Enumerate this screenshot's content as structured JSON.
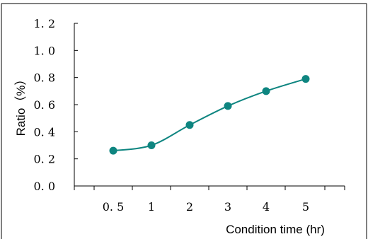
{
  "chart_data": {
    "type": "line",
    "categories": [
      "0. 5",
      "1",
      "2",
      "3",
      "4",
      "5"
    ],
    "series": [
      {
        "values": [
          0.26,
          0.3,
          0.45,
          0.59,
          0.7,
          0.79
        ]
      }
    ],
    "y_ticks": [
      "0. 0",
      "0. 2",
      "0. 4",
      "0. 6",
      "0. 8",
      "1. 0",
      "1. 2"
    ],
    "y_tick_values": [
      0,
      0.2,
      0.4,
      0.6,
      0.8,
      1.0,
      1.2
    ],
    "ylim": [
      0,
      1.2
    ],
    "xlabel": "Condition time (hr)",
    "ylabel": "Ratio（%）",
    "title": "",
    "grid": false,
    "legend": "none",
    "colors": {
      "series": "#0e8580",
      "axis": "#000000",
      "frame": "#000000"
    },
    "smooth": true
  }
}
